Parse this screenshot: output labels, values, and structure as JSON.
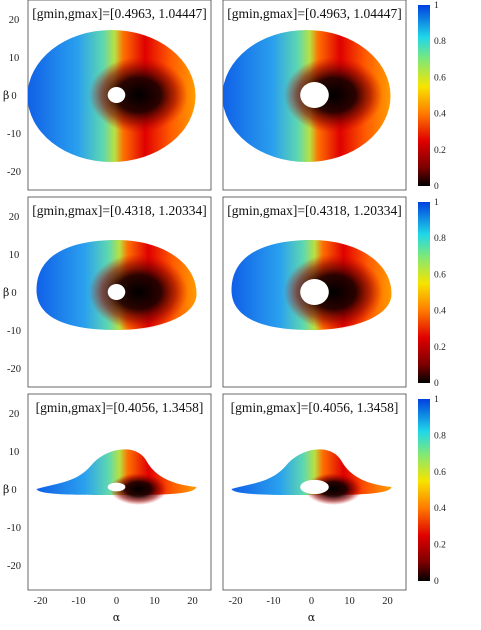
{
  "figure": {
    "rows": [
      {
        "label": "[gmin,gmax]=[0.4963, 1.04447]"
      },
      {
        "label": "[gmin,gmax]=[0.4318, 1.20334]"
      },
      {
        "label": "[gmin,gmax]=[0.4056, 1.3458]"
      }
    ],
    "ylabel": "β",
    "xlabel": "α",
    "y_ticks": [
      "20",
      "10",
      "0",
      "-10",
      "-20"
    ],
    "x_ticks": [
      "-20",
      "-10",
      "0",
      "10",
      "20"
    ],
    "colorbar_ticks": [
      "1",
      "0.8",
      "0.6",
      "0.4",
      "0.2",
      "0"
    ]
  },
  "chart_data": {
    "type": "heatmap",
    "panels": 6,
    "layout": "3 rows × 2 columns",
    "xlim": [
      -25,
      25
    ],
    "ylim": [
      -25,
      25
    ],
    "colorbar_range": [
      0,
      1
    ],
    "colormap": "jet (dark red/black → red → yellow → green → cyan → blue)"
  }
}
